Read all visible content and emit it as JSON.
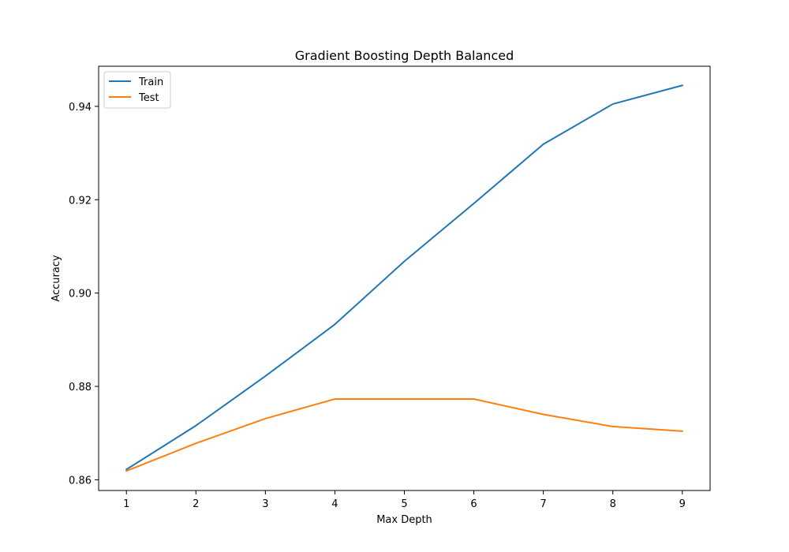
{
  "chart_data": {
    "type": "line",
    "title": "Gradient Boosting Depth Balanced",
    "xlabel": "Max Depth",
    "ylabel": "Accuracy",
    "x": [
      1,
      2,
      3,
      4,
      5,
      6,
      7,
      8,
      9
    ],
    "xlim": [
      0.6,
      9.4
    ],
    "ylim": [
      0.8577,
      0.9486
    ],
    "xticks": [
      1,
      2,
      3,
      4,
      5,
      6,
      7,
      8,
      9
    ],
    "yticks": [
      0.86,
      0.88,
      0.9,
      0.92,
      0.94
    ],
    "ytick_labels": [
      "0.86",
      "0.88",
      "0.90",
      "0.92",
      "0.94"
    ],
    "grid": false,
    "legend_position": "upper-left",
    "series": [
      {
        "name": "Train",
        "color": "#1f77b4",
        "values": [
          0.8622,
          0.8716,
          0.8822,
          0.8933,
          0.9068,
          0.9192,
          0.9319,
          0.9405,
          0.9445
        ]
      },
      {
        "name": "Test",
        "color": "#ff7f0e",
        "values": [
          0.8619,
          0.8678,
          0.8731,
          0.8773,
          0.8773,
          0.8773,
          0.874,
          0.8714,
          0.8704
        ]
      }
    ]
  }
}
